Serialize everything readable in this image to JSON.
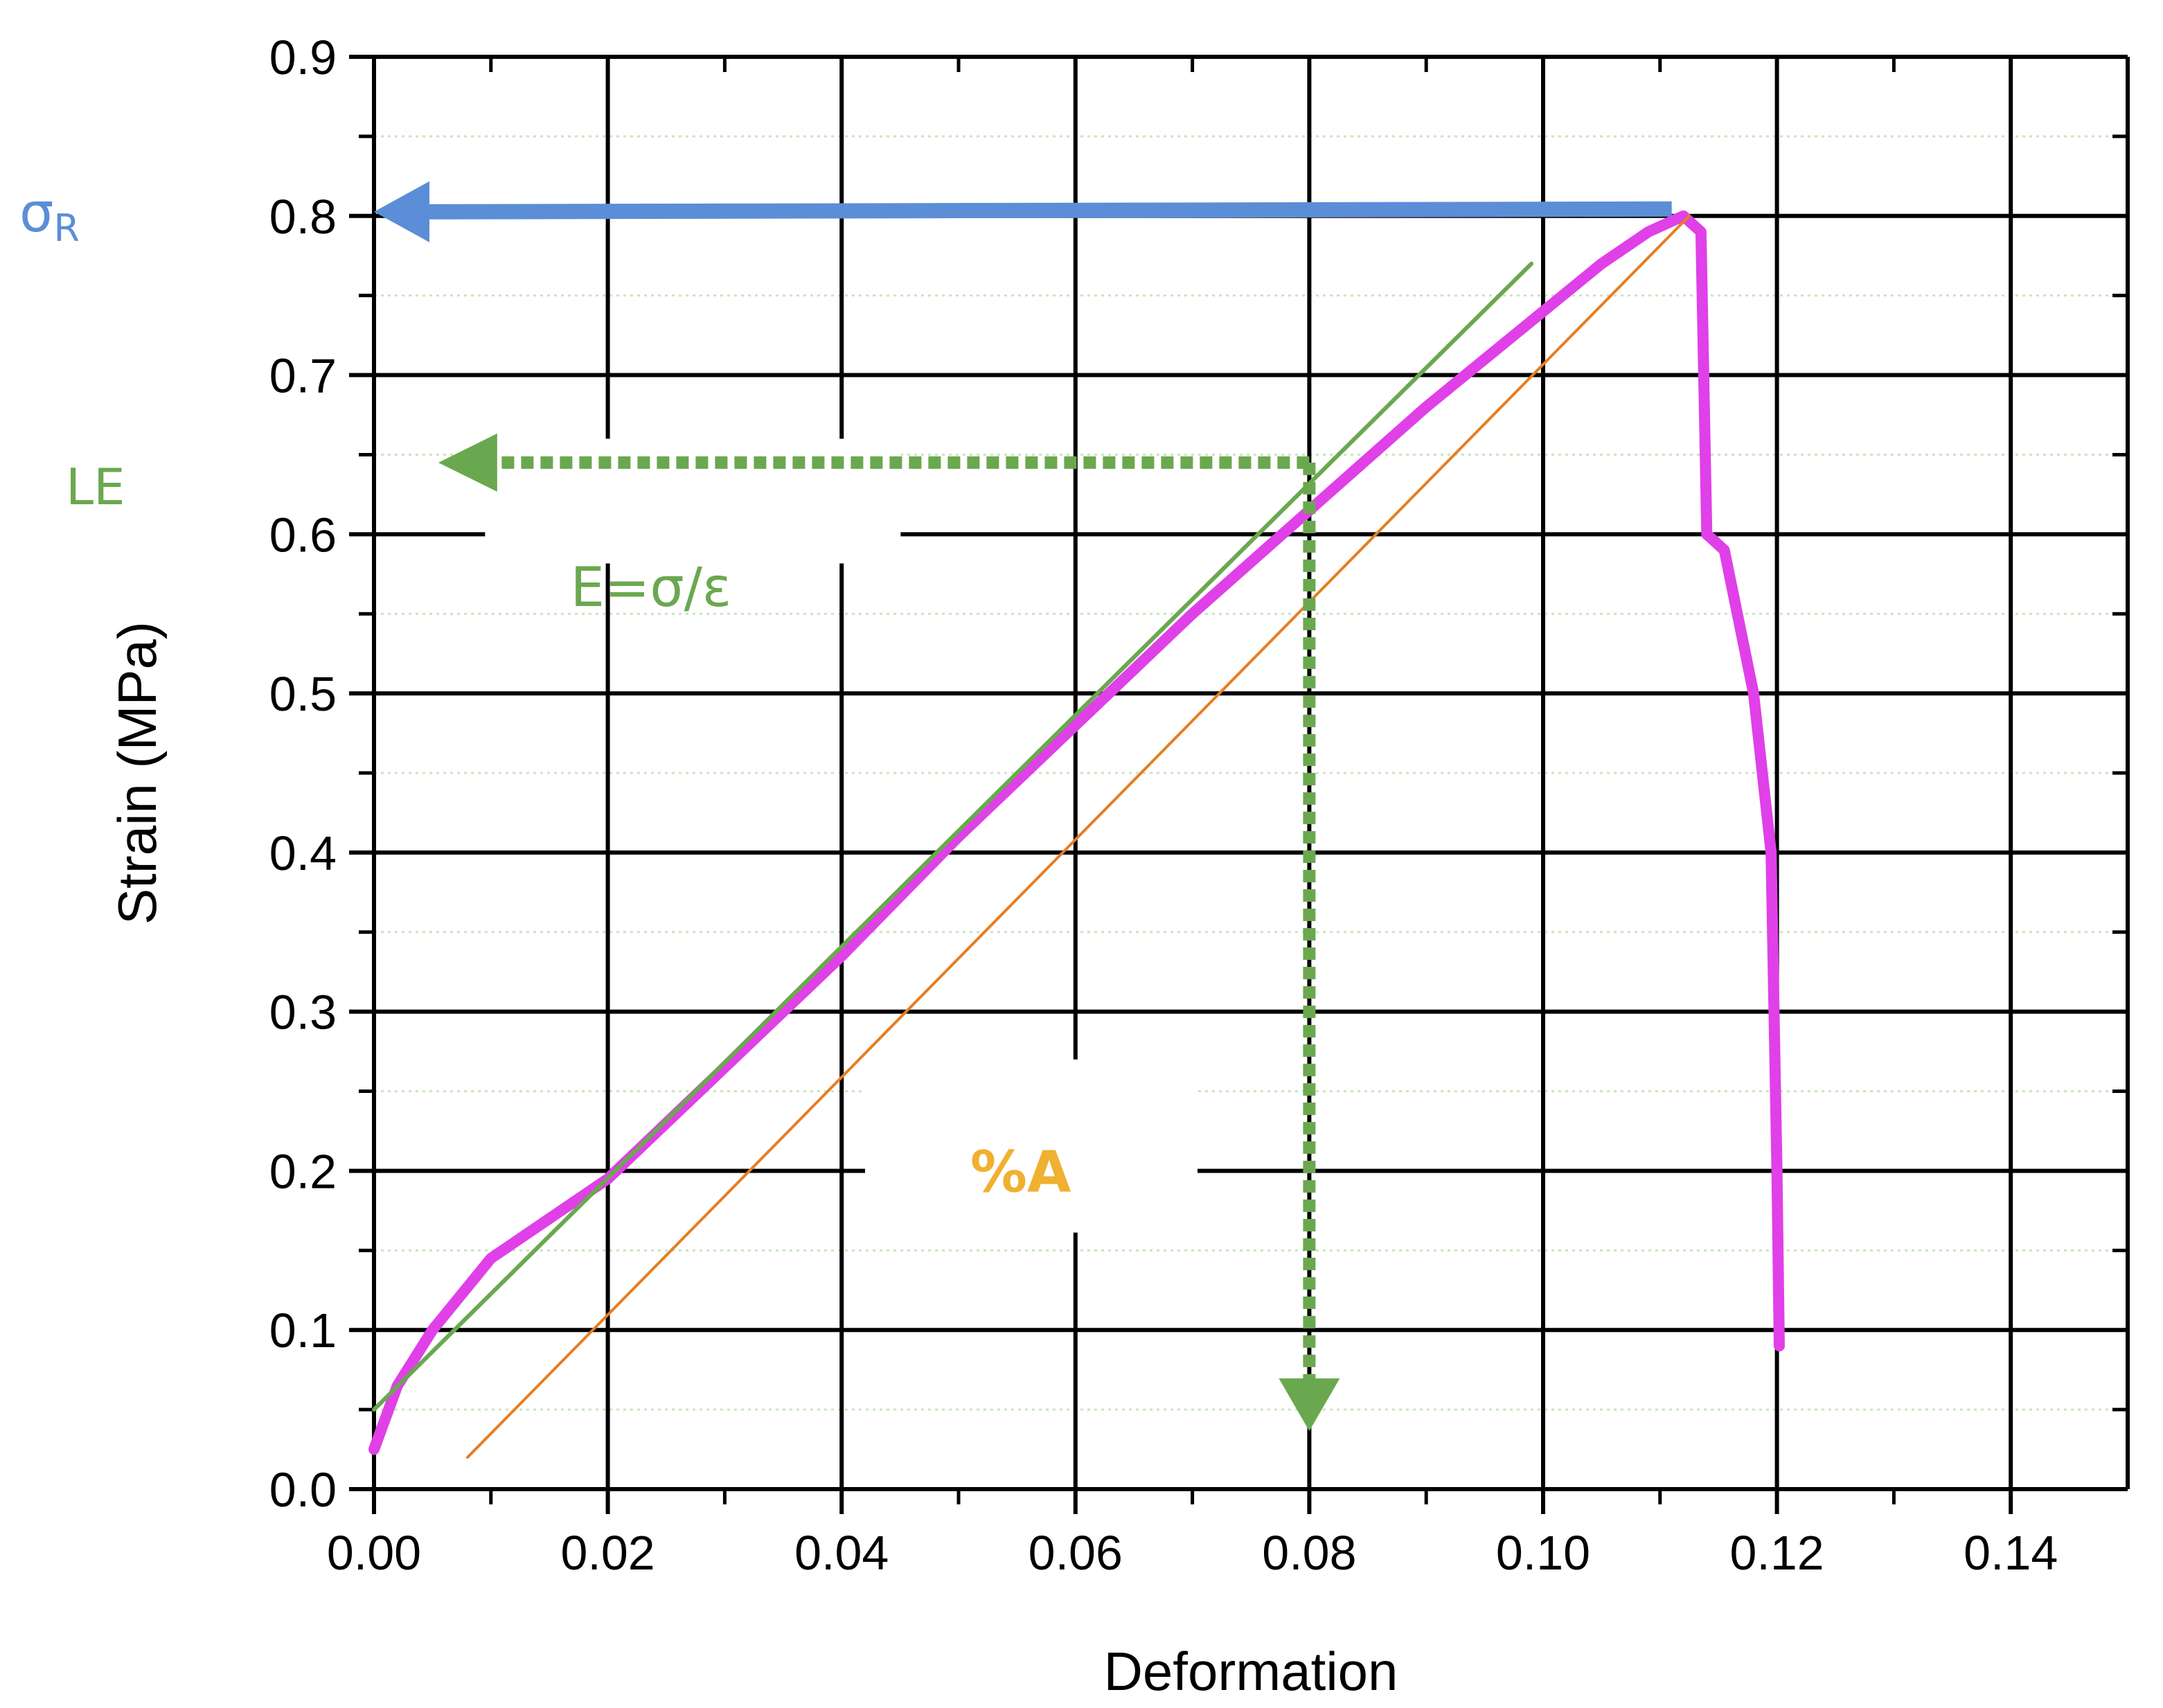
{
  "chart_data": {
    "type": "line",
    "xlabel": "Deformation",
    "ylabel": "Strain (MPa)",
    "xlim": [
      0.0,
      0.15
    ],
    "ylim": [
      0.0,
      0.9
    ],
    "x_ticks": [
      "0.00",
      "0.02",
      "0.04",
      "0.06",
      "0.08",
      "0.10",
      "0.12",
      "0.14"
    ],
    "x_tick_values": [
      0.0,
      0.02,
      0.04,
      0.06,
      0.08,
      0.1,
      0.12,
      0.14
    ],
    "y_ticks": [
      "0.0",
      "0.1",
      "0.2",
      "0.3",
      "0.4",
      "0.5",
      "0.6",
      "0.7",
      "0.8",
      "0.9"
    ],
    "y_tick_values": [
      0.0,
      0.1,
      0.2,
      0.3,
      0.4,
      0.5,
      0.6,
      0.7,
      0.8,
      0.9
    ],
    "grid": true,
    "series": [
      {
        "color": "#e040e8",
        "x": [
          0.0,
          0.002,
          0.005,
          0.01,
          0.02,
          0.03,
          0.04,
          0.05,
          0.06,
          0.07,
          0.08,
          0.09,
          0.1,
          0.105,
          0.109,
          0.112,
          0.1135,
          0.114,
          0.1155,
          0.118,
          0.1195,
          0.12,
          0.1202
        ],
        "y": [
          0.025,
          0.065,
          0.1,
          0.145,
          0.195,
          0.265,
          0.335,
          0.41,
          0.48,
          0.55,
          0.615,
          0.68,
          0.74,
          0.77,
          0.79,
          0.8,
          0.79,
          0.6,
          0.59,
          0.5,
          0.4,
          0.2,
          0.09
        ]
      },
      {
        "color": "#6aa84f",
        "x": [
          0.0,
          0.099
        ],
        "y": [
          0.05,
          0.77
        ]
      },
      {
        "color": "#e67e22",
        "x": [
          0.008,
          0.1125
        ],
        "y": [
          0.02,
          0.8
        ]
      }
    ],
    "annotations": {
      "sigma_r": {
        "text": "σ",
        "subscript": "R",
        "color": "#5b8ed6",
        "arrow_y": 0.8,
        "arrow_x_from": 0.111
      },
      "le": {
        "text": "LE",
        "color": "#6aa84f",
        "arrow_y": 0.645,
        "arrow_x_from": 0.08,
        "arrow_x_to": 0.0055
      },
      "modulus": {
        "text": "E=σ/ε",
        "color": "#6aa84f"
      },
      "elongation": {
        "text": "%A",
        "color": "#f0b030",
        "arrow_x": 0.08,
        "arrow_y_from": 0.645,
        "arrow_y_to": 0.04
      }
    }
  }
}
